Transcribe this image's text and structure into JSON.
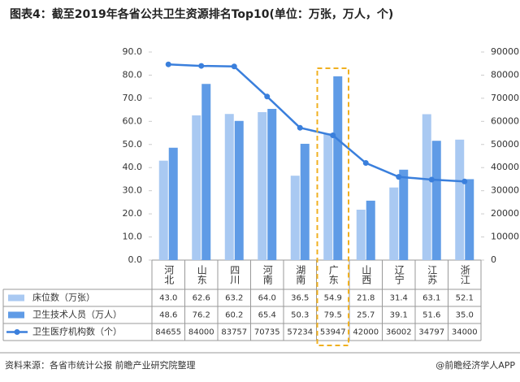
{
  "chart_data": {
    "type": "bar_line_table",
    "title": "图表4：截至2019年各省公共卫生资源排名Top10(单位：万张，万人，个)",
    "categories": [
      "河北",
      "山东",
      "四川",
      "河南",
      "湖南",
      "广东",
      "山西",
      "辽宁",
      "江苏",
      "浙江"
    ],
    "series": [
      {
        "name": "床位数（万张）",
        "type": "bar",
        "color": "#a9c9f2",
        "values": [
          43.0,
          62.6,
          63.2,
          64.0,
          36.5,
          54.9,
          21.8,
          31.4,
          63.1,
          52.1
        ],
        "value_labels": [
          "43.0",
          "62.6",
          "63.2",
          "64.0",
          "36.5",
          "54.9",
          "21.8",
          "31.4",
          "63.1",
          "52.1"
        ]
      },
      {
        "name": "卫生技术人员（万人）",
        "type": "bar",
        "color": "#5f9be6",
        "values": [
          48.6,
          76.2,
          60.2,
          65.4,
          50.3,
          79.5,
          25.7,
          39.1,
          51.6,
          35.0
        ],
        "value_labels": [
          "48.6",
          "76.2",
          "60.2",
          "65.4",
          "50.3",
          "79.5",
          "25.7",
          "39.1",
          "51.6",
          "35.0"
        ]
      },
      {
        "name": "卫生医疗机构数（个）",
        "type": "line",
        "axis": "y2",
        "color": "#3a7fdc",
        "values": [
          84655,
          84000,
          83757,
          70735,
          57234,
          53947,
          42000,
          36002,
          34797,
          34000
        ]
      }
    ],
    "ylim": [
      0,
      90
    ],
    "yticks": [
      {
        "value": 0,
        "label": "0.0"
      },
      {
        "value": 10,
        "label": "10.0"
      },
      {
        "value": 20,
        "label": "20.0"
      },
      {
        "value": 30,
        "label": "30.0"
      },
      {
        "value": 40,
        "label": "40.0"
      },
      {
        "value": 50,
        "label": "50.0"
      },
      {
        "value": 60,
        "label": "60.0"
      },
      {
        "value": 70,
        "label": "70.0"
      },
      {
        "value": 80,
        "label": "80.0"
      },
      {
        "value": 90,
        "label": "90.0"
      }
    ],
    "y2lim": [
      0,
      90000
    ],
    "y2ticks": [
      0,
      10000,
      20000,
      30000,
      40000,
      50000,
      60000,
      70000,
      80000,
      90000
    ],
    "source": "资料来源：各省市统计公报 前瞻产业研究院整理",
    "credit": "@前瞻经济学人APP"
  }
}
